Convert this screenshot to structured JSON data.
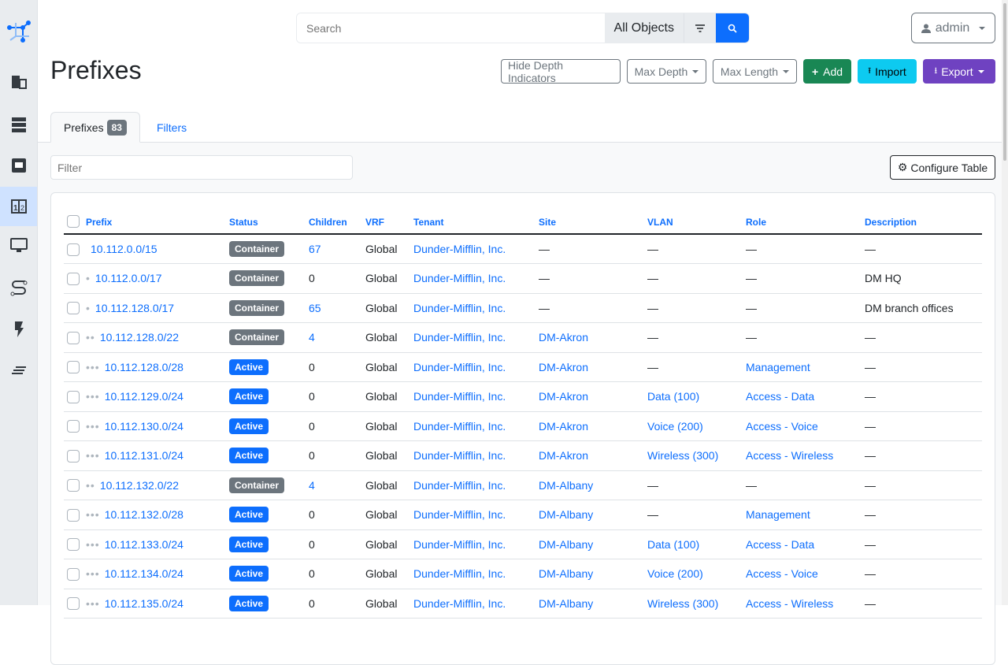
{
  "search": {
    "placeholder": "Search",
    "scope": "All Objects"
  },
  "user": {
    "name": "admin"
  },
  "page": {
    "title": "Prefixes"
  },
  "actions": {
    "hide_depth": "Hide Depth Indicators",
    "max_depth": "Max Depth",
    "max_length": "Max Length",
    "add": "Add",
    "import": "Import",
    "export": "Export"
  },
  "colors": {
    "primary": "#0d6efd",
    "add": "#198754",
    "import": "#0dcaf0",
    "export": "#6f42c1",
    "container": "#6c757d",
    "active": "#0d6efd"
  },
  "tabs": [
    {
      "label": "Prefixes",
      "count": "83"
    },
    {
      "label": "Filters"
    }
  ],
  "filter": {
    "placeholder": "Filter"
  },
  "configure_table": "Configure Table",
  "table": {
    "columns": [
      "Prefix",
      "Status",
      "Children",
      "VRF",
      "Tenant",
      "Site",
      "VLAN",
      "Role",
      "Description"
    ],
    "rows": [
      {
        "depth": 0,
        "prefix": "10.112.0.0/15",
        "status": "Container",
        "children": "67",
        "vrf": "Global",
        "tenant": "Dunder-Mifflin, Inc.",
        "site": "—",
        "vlan": "—",
        "role": "—",
        "description": "—"
      },
      {
        "depth": 1,
        "prefix": "10.112.0.0/17",
        "status": "Container",
        "children": "0",
        "vrf": "Global",
        "tenant": "Dunder-Mifflin, Inc.",
        "site": "—",
        "vlan": "—",
        "role": "—",
        "description": "DM HQ"
      },
      {
        "depth": 1,
        "prefix": "10.112.128.0/17",
        "status": "Container",
        "children": "65",
        "vrf": "Global",
        "tenant": "Dunder-Mifflin, Inc.",
        "site": "—",
        "vlan": "—",
        "role": "—",
        "description": "DM branch offices"
      },
      {
        "depth": 2,
        "prefix": "10.112.128.0/22",
        "status": "Container",
        "children": "4",
        "vrf": "Global",
        "tenant": "Dunder-Mifflin, Inc.",
        "site": "DM-Akron",
        "vlan": "—",
        "role": "—",
        "description": "—"
      },
      {
        "depth": 3,
        "prefix": "10.112.128.0/28",
        "status": "Active",
        "children": "0",
        "vrf": "Global",
        "tenant": "Dunder-Mifflin, Inc.",
        "site": "DM-Akron",
        "vlan": "—",
        "role": "Management",
        "description": "—"
      },
      {
        "depth": 3,
        "prefix": "10.112.129.0/24",
        "status": "Active",
        "children": "0",
        "vrf": "Global",
        "tenant": "Dunder-Mifflin, Inc.",
        "site": "DM-Akron",
        "vlan": "Data (100)",
        "role": "Access - Data",
        "description": "—"
      },
      {
        "depth": 3,
        "prefix": "10.112.130.0/24",
        "status": "Active",
        "children": "0",
        "vrf": "Global",
        "tenant": "Dunder-Mifflin, Inc.",
        "site": "DM-Akron",
        "vlan": "Voice (200)",
        "role": "Access - Voice",
        "description": "—"
      },
      {
        "depth": 3,
        "prefix": "10.112.131.0/24",
        "status": "Active",
        "children": "0",
        "vrf": "Global",
        "tenant": "Dunder-Mifflin, Inc.",
        "site": "DM-Akron",
        "vlan": "Wireless (300)",
        "role": "Access - Wireless",
        "description": "—"
      },
      {
        "depth": 2,
        "prefix": "10.112.132.0/22",
        "status": "Container",
        "children": "4",
        "vrf": "Global",
        "tenant": "Dunder-Mifflin, Inc.",
        "site": "DM-Albany",
        "vlan": "—",
        "role": "—",
        "description": "—"
      },
      {
        "depth": 3,
        "prefix": "10.112.132.0/28",
        "status": "Active",
        "children": "0",
        "vrf": "Global",
        "tenant": "Dunder-Mifflin, Inc.",
        "site": "DM-Albany",
        "vlan": "—",
        "role": "Management",
        "description": "—"
      },
      {
        "depth": 3,
        "prefix": "10.112.133.0/24",
        "status": "Active",
        "children": "0",
        "vrf": "Global",
        "tenant": "Dunder-Mifflin, Inc.",
        "site": "DM-Albany",
        "vlan": "Data (100)",
        "role": "Access - Data",
        "description": "—"
      },
      {
        "depth": 3,
        "prefix": "10.112.134.0/24",
        "status": "Active",
        "children": "0",
        "vrf": "Global",
        "tenant": "Dunder-Mifflin, Inc.",
        "site": "DM-Albany",
        "vlan": "Voice (200)",
        "role": "Access - Voice",
        "description": "—"
      },
      {
        "depth": 3,
        "prefix": "10.112.135.0/24",
        "status": "Active",
        "children": "0",
        "vrf": "Global",
        "tenant": "Dunder-Mifflin, Inc.",
        "site": "DM-Albany",
        "vlan": "Wireless (300)",
        "role": "Access - Wireless",
        "description": "—"
      }
    ]
  }
}
